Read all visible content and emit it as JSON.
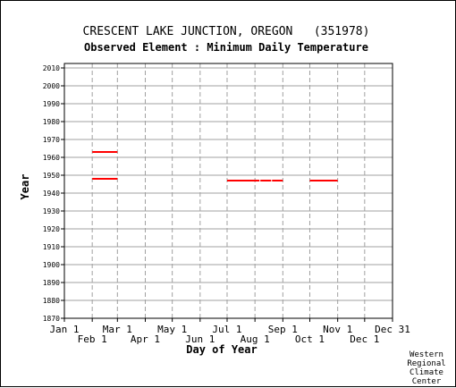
{
  "chart_data": {
    "type": "line",
    "title": "CRESCENT LAKE JUNCTION, OREGON   (351978)",
    "subtitle": "Observed Element : Minimum Daily Temperature",
    "xlabel": "Day of Year",
    "ylabel": "Year",
    "ylim": [
      1870,
      2011
    ],
    "y_ticks": [
      1870,
      1880,
      1890,
      1900,
      1910,
      1920,
      1930,
      1940,
      1950,
      1960,
      1970,
      1980,
      1990,
      2000,
      2010
    ],
    "xlim": [
      1,
      366
    ],
    "x_ticks_upper": [
      {
        "label": "Jan 1",
        "day": 1
      },
      {
        "label": "Mar 1",
        "day": 60
      },
      {
        "label": "May 1",
        "day": 121
      },
      {
        "label": "Jul 1",
        "day": 182
      },
      {
        "label": "Sep 1",
        "day": 244
      },
      {
        "label": "Nov 1",
        "day": 305
      },
      {
        "label": "Dec 31",
        "day": 366
      }
    ],
    "x_ticks_lower": [
      {
        "label": "Feb 1",
        "day": 32
      },
      {
        "label": "Apr 1",
        "day": 91
      },
      {
        "label": "Jun 1",
        "day": 152
      },
      {
        "label": "Aug 1",
        "day": 213
      },
      {
        "label": "Oct 1",
        "day": 274
      },
      {
        "label": "Dec 1",
        "day": 335
      }
    ],
    "grid": true,
    "line_color": "#ff0000",
    "segments": [
      {
        "year": 1963,
        "start_day": 32,
        "end_day": 60
      },
      {
        "year": 1948,
        "start_day": 32,
        "end_day": 60
      },
      {
        "year": 1947,
        "start_day": 182,
        "end_day": 218
      },
      {
        "year": 1947,
        "start_day": 219,
        "end_day": 231
      },
      {
        "year": 1947,
        "start_day": 232,
        "end_day": 244
      },
      {
        "year": 1947,
        "start_day": 274,
        "end_day": 305
      }
    ]
  },
  "credit": [
    "Western",
    "Regional",
    "Climate",
    "Center"
  ]
}
